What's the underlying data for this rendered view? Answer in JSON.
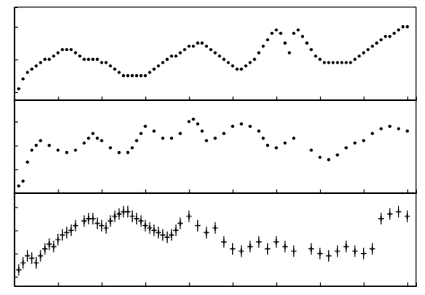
{
  "chart_data": [
    {
      "type": "scatter",
      "marker": "circle",
      "color": "#000000",
      "tick_labels": false,
      "x": [
        1,
        2,
        3,
        4,
        5,
        6,
        7,
        8,
        9,
        10,
        11,
        12,
        13,
        14,
        15,
        16,
        17,
        18,
        19,
        20,
        21,
        22,
        23,
        24,
        25,
        26,
        27,
        28,
        29,
        30,
        31,
        32,
        33,
        34,
        35,
        36,
        37,
        38,
        39,
        40,
        41,
        42,
        43,
        44,
        45,
        46,
        47,
        48,
        49,
        50,
        51,
        52,
        53,
        54,
        55,
        56,
        57,
        58,
        59,
        60,
        61,
        62,
        63,
        64,
        65,
        66,
        67,
        68,
        69,
        70,
        71,
        72,
        73,
        74,
        75,
        76,
        77,
        78,
        79,
        80,
        81,
        82,
        83,
        84,
        85,
        86,
        87,
        88,
        89,
        90
      ],
      "values": [
        0.22,
        0.28,
        0.32,
        0.34,
        0.36,
        0.38,
        0.4,
        0.4,
        0.42,
        0.44,
        0.46,
        0.46,
        0.46,
        0.44,
        0.42,
        0.4,
        0.4,
        0.4,
        0.4,
        0.38,
        0.38,
        0.36,
        0.34,
        0.32,
        0.3,
        0.3,
        0.3,
        0.3,
        0.3,
        0.3,
        0.32,
        0.34,
        0.36,
        0.38,
        0.4,
        0.42,
        0.42,
        0.44,
        0.46,
        0.48,
        0.48,
        0.5,
        0.5,
        0.48,
        0.46,
        0.44,
        0.42,
        0.4,
        0.38,
        0.36,
        0.34,
        0.34,
        0.36,
        0.38,
        0.4,
        0.44,
        0.48,
        0.52,
        0.56,
        0.58,
        0.56,
        0.5,
        0.44,
        0.56,
        0.58,
        0.54,
        0.5,
        0.46,
        0.42,
        0.4,
        0.38,
        0.38,
        0.38,
        0.38,
        0.38,
        0.38,
        0.38,
        0.4,
        0.42,
        0.44,
        0.46,
        0.48,
        0.5,
        0.52,
        0.54,
        0.54,
        0.56,
        0.58,
        0.6,
        0.6
      ],
      "xlim": [
        0,
        92
      ],
      "xticks": [
        0,
        10,
        20,
        30,
        40,
        50,
        60,
        70,
        80,
        90
      ],
      "ylim": [
        0.15,
        0.72
      ],
      "yticks": [
        0.2,
        0.4,
        0.6
      ]
    },
    {
      "type": "scatter",
      "marker": "circle",
      "color": "#000000",
      "tick_labels": false,
      "x": [
        1,
        2,
        3,
        4,
        5,
        6,
        8,
        10,
        12,
        14,
        16,
        17,
        18,
        19,
        20,
        22,
        24,
        26,
        27,
        28,
        29,
        30,
        32,
        34,
        36,
        38,
        40,
        41,
        42,
        43,
        44,
        46,
        48,
        50,
        52,
        54,
        56,
        57,
        58,
        60,
        62,
        64,
        68,
        70,
        72,
        74,
        76,
        78,
        80,
        82,
        84,
        86,
        88,
        90
      ],
      "values": [
        0.06,
        0.1,
        0.26,
        0.36,
        0.4,
        0.44,
        0.4,
        0.36,
        0.34,
        0.36,
        0.42,
        0.46,
        0.5,
        0.46,
        0.44,
        0.38,
        0.34,
        0.34,
        0.38,
        0.44,
        0.5,
        0.56,
        0.52,
        0.46,
        0.46,
        0.5,
        0.6,
        0.62,
        0.58,
        0.52,
        0.44,
        0.46,
        0.5,
        0.56,
        0.58,
        0.56,
        0.52,
        0.46,
        0.4,
        0.38,
        0.42,
        0.46,
        0.36,
        0.3,
        0.28,
        0.32,
        0.38,
        0.42,
        0.44,
        0.5,
        0.54,
        0.56,
        0.54,
        0.52
      ],
      "xlim": [
        0,
        92
      ],
      "xticks": [
        0,
        10,
        20,
        30,
        40,
        50,
        60,
        70,
        80,
        90
      ],
      "ylim": [
        0.0,
        0.78
      ],
      "yticks": [
        0,
        0.2,
        0.4,
        0.6
      ]
    },
    {
      "type": "scatter",
      "marker": "plus",
      "color": "#000000",
      "tick_labels": false,
      "x": [
        1,
        2,
        3,
        4,
        5,
        6,
        7,
        8,
        9,
        10,
        11,
        12,
        13,
        14,
        16,
        17,
        18,
        19,
        20,
        21,
        22,
        23,
        24,
        25,
        26,
        27,
        28,
        29,
        30,
        31,
        32,
        33,
        34,
        35,
        36,
        37,
        38,
        40,
        42,
        44,
        46,
        48,
        50,
        52,
        54,
        56,
        58,
        60,
        62,
        64,
        68,
        70,
        72,
        74,
        76,
        78,
        80,
        82,
        84,
        86,
        88,
        90
      ],
      "values": [
        0.06,
        0.12,
        0.18,
        0.16,
        0.12,
        0.18,
        0.24,
        0.28,
        0.26,
        0.32,
        0.36,
        0.38,
        0.4,
        0.44,
        0.48,
        0.5,
        0.5,
        0.46,
        0.44,
        0.42,
        0.48,
        0.52,
        0.54,
        0.56,
        0.56,
        0.52,
        0.5,
        0.48,
        0.44,
        0.42,
        0.4,
        0.38,
        0.36,
        0.34,
        0.36,
        0.4,
        0.46,
        0.52,
        0.44,
        0.38,
        0.42,
        0.3,
        0.24,
        0.22,
        0.26,
        0.3,
        0.24,
        0.3,
        0.26,
        0.22,
        0.24,
        0.2,
        0.18,
        0.22,
        0.26,
        0.22,
        0.2,
        0.24,
        0.5,
        0.54,
        0.56,
        0.52
      ],
      "errors": [
        0.05,
        0.05,
        0.05,
        0.05,
        0.05,
        0.05,
        0.05,
        0.05,
        0.05,
        0.05,
        0.05,
        0.05,
        0.05,
        0.05,
        0.05,
        0.05,
        0.05,
        0.05,
        0.05,
        0.05,
        0.05,
        0.05,
        0.05,
        0.05,
        0.05,
        0.05,
        0.05,
        0.05,
        0.05,
        0.05,
        0.05,
        0.05,
        0.05,
        0.05,
        0.05,
        0.05,
        0.05,
        0.05,
        0.05,
        0.05,
        0.05,
        0.05,
        0.05,
        0.05,
        0.05,
        0.05,
        0.05,
        0.05,
        0.05,
        0.05,
        0.05,
        0.05,
        0.05,
        0.05,
        0.05,
        0.05,
        0.05,
        0.05,
        0.05,
        0.05,
        0.05,
        0.05
      ],
      "xlim": [
        0,
        92
      ],
      "xticks": [
        0,
        10,
        20,
        30,
        40,
        50,
        60,
        70,
        80,
        90
      ],
      "ylim": [
        -0.08,
        0.72
      ],
      "yticks": [
        0,
        0.2,
        0.4,
        0.6
      ]
    }
  ]
}
